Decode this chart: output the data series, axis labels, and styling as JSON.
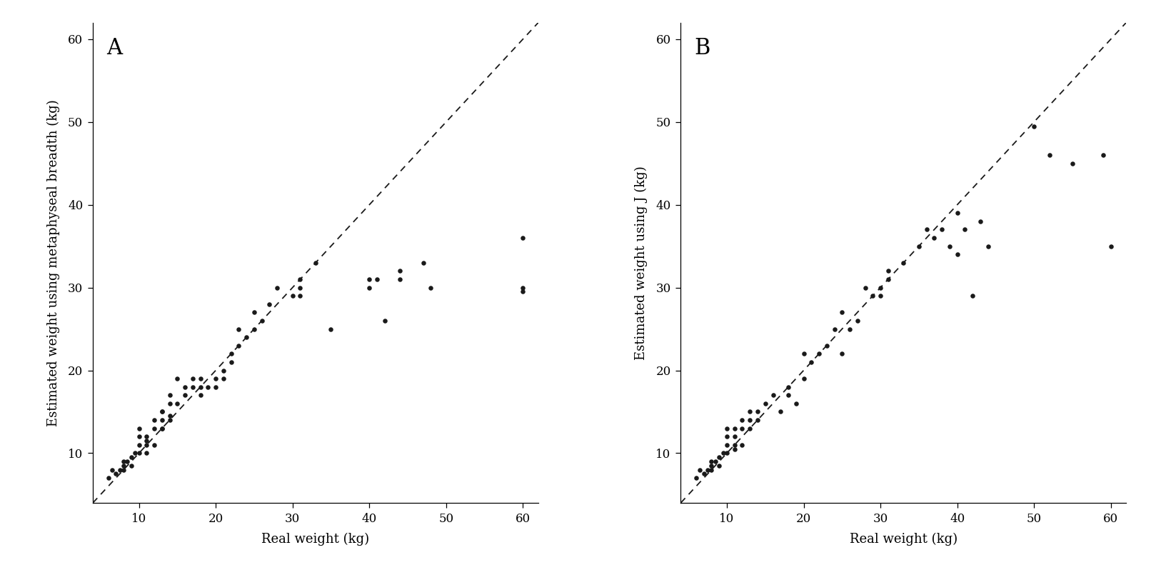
{
  "panel_A": {
    "label": "A",
    "ylabel": "Estimated weight using metaphyseal breadth (kg)",
    "xlabel": "Real weight (kg)",
    "xlim": [
      4,
      62
    ],
    "ylim": [
      4,
      62
    ],
    "xticks": [
      10,
      20,
      30,
      40,
      50,
      60
    ],
    "yticks": [
      10,
      20,
      30,
      40,
      50,
      60
    ],
    "scatter_x": [
      6,
      6.5,
      7,
      7.5,
      8,
      8,
      8,
      8.5,
      9,
      9,
      9.5,
      10,
      10,
      10,
      10,
      11,
      11,
      11,
      11,
      12,
      12,
      12,
      13,
      13,
      13,
      13,
      13,
      14,
      14,
      14,
      14,
      15,
      15,
      16,
      16,
      17,
      17,
      18,
      18,
      18,
      19,
      20,
      20,
      21,
      21,
      22,
      22,
      23,
      23,
      24,
      25,
      25,
      26,
      27,
      28,
      30,
      31,
      31,
      31,
      33,
      35,
      40,
      40,
      41,
      42,
      44,
      44,
      47,
      48,
      60,
      60,
      60
    ],
    "scatter_y": [
      7,
      8,
      7.5,
      8,
      8,
      8.5,
      9,
      9,
      8.5,
      9.5,
      10,
      10,
      11,
      12,
      13,
      10,
      11,
      11.5,
      12,
      11,
      13,
      14,
      13,
      13,
      14,
      15,
      15,
      14,
      14.5,
      16,
      17,
      16,
      19,
      17,
      18,
      18,
      19,
      17,
      18,
      19,
      18,
      18,
      19,
      19,
      20,
      21,
      22,
      23,
      25,
      24,
      25,
      27,
      26,
      28,
      30,
      29,
      30,
      31,
      29,
      33,
      25,
      30,
      31,
      31,
      26,
      31,
      32,
      33,
      30,
      29.5,
      36,
      30
    ]
  },
  "panel_B": {
    "label": "B",
    "ylabel": "Estimated weight using J (kg)",
    "xlabel": "Real weight (kg)",
    "xlim": [
      4,
      62
    ],
    "ylim": [
      4,
      62
    ],
    "xticks": [
      10,
      20,
      30,
      40,
      50,
      60
    ],
    "yticks": [
      10,
      20,
      30,
      40,
      50,
      60
    ],
    "scatter_x": [
      6,
      6.5,
      7,
      7.5,
      8,
      8,
      8,
      8.5,
      9,
      9,
      9.5,
      10,
      10,
      10,
      10,
      11,
      11,
      11,
      11,
      12,
      12,
      12,
      13,
      13,
      13,
      14,
      14,
      15,
      16,
      17,
      18,
      18,
      19,
      20,
      20,
      21,
      22,
      23,
      24,
      25,
      25,
      26,
      27,
      28,
      29,
      30,
      30,
      31,
      31,
      33,
      35,
      36,
      37,
      38,
      39,
      40,
      40,
      41,
      42,
      43,
      44,
      50,
      52,
      55,
      59,
      60
    ],
    "scatter_y": [
      7,
      8,
      7.5,
      8,
      8,
      8.5,
      9,
      9,
      8.5,
      9.5,
      10,
      10,
      11,
      12,
      13,
      10.5,
      11,
      12,
      13,
      11,
      13,
      14,
      13,
      14,
      15,
      14,
      15,
      16,
      17,
      15,
      17,
      18,
      16,
      19,
      22,
      21,
      22,
      23,
      25,
      22,
      27,
      25,
      26,
      30,
      29,
      29,
      30,
      32,
      31,
      33,
      35,
      37,
      36,
      37,
      35,
      39,
      34,
      37,
      29,
      38,
      35,
      49.5,
      46,
      45,
      46,
      35
    ]
  },
  "figure_bg": "#ffffff",
  "axes_bg": "#ffffff",
  "dot_color": "#1a1a1a",
  "dot_size": 22,
  "line_color": "#1a1a1a",
  "dashed_color": "#1a1a1a",
  "font_family": "DejaVu Serif",
  "label_fontsize": 13,
  "tick_fontsize": 12,
  "panel_label_fontsize": 22,
  "curve_A_params": [
    35.0,
    0.08,
    30.0
  ],
  "curve_B_params": [
    44.0,
    0.18,
    28.0
  ]
}
